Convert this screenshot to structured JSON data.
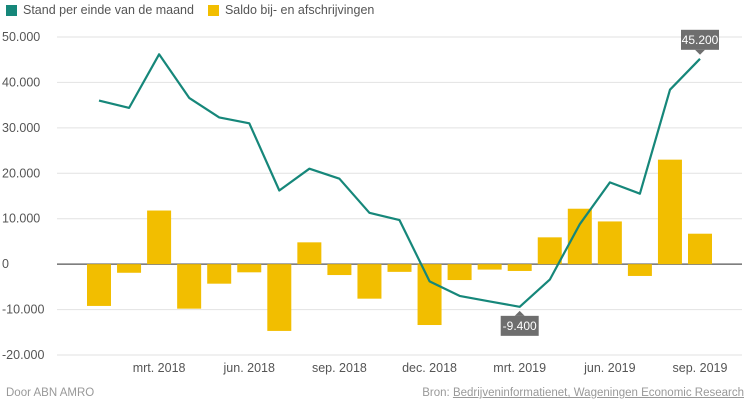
{
  "legend": {
    "line_label": "Stand per einde van de maand",
    "bar_label": "Saldo bij- en afschrijvingen"
  },
  "colors": {
    "line": "#16877a",
    "bar": "#f2be00",
    "callout": "#6e6e6e"
  },
  "footer": {
    "credit": "Door ABN AMRO",
    "source_prefix": "Bron:",
    "source_link": "Bedrijveninformatienet, Wageningen Economic Research"
  },
  "chart_data": {
    "type": "bar+line",
    "categories": [
      "2018-01",
      "2018-02",
      "2018-03",
      "2018-04",
      "2018-05",
      "2018-06",
      "2018-07",
      "2018-08",
      "2018-09",
      "2018-10",
      "2018-11",
      "2018-12",
      "2019-01",
      "2019-02",
      "2019-03",
      "2019-04",
      "2019-05",
      "2019-06",
      "2019-07",
      "2019-08",
      "2019-09"
    ],
    "x_tick_labels": [
      {
        "index": 2,
        "label": "mrt. 2018"
      },
      {
        "index": 5,
        "label": "jun. 2018"
      },
      {
        "index": 8,
        "label": "sep. 2018"
      },
      {
        "index": 11,
        "label": "dec. 2018"
      },
      {
        "index": 14,
        "label": "mrt. 2019"
      },
      {
        "index": 17,
        "label": "jun. 2019"
      },
      {
        "index": 20,
        "label": "sep. 2019"
      }
    ],
    "y_ticks": [
      -20000,
      -10000,
      0,
      10000,
      20000,
      30000,
      40000,
      50000
    ],
    "y_tick_labels": [
      "-20.000",
      "-10.000",
      "0",
      "10.000",
      "20.000",
      "30.000",
      "40.000",
      "50.000"
    ],
    "ylim": [
      -20000,
      50000
    ],
    "series": [
      {
        "name": "Saldo bij- en afschrijvingen",
        "kind": "bar",
        "values": [
          -9200,
          -1900,
          11800,
          -9800,
          -4300,
          -1800,
          -14700,
          4800,
          -2400,
          -7600,
          -1700,
          -13400,
          -3500,
          -1200,
          -1500,
          5900,
          12200,
          9400,
          -2600,
          23000,
          6700
        ]
      },
      {
        "name": "Stand per einde van de maand",
        "kind": "line",
        "values": [
          36000,
          34400,
          46200,
          36600,
          32300,
          31000,
          16200,
          21000,
          18800,
          11300,
          9700,
          -3800,
          -7000,
          -8200,
          -9400,
          -3400,
          8800,
          18000,
          15500,
          38400,
          45200
        ]
      }
    ],
    "annotations": [
      {
        "series": "Stand per einde van de maand",
        "index": 14,
        "label": "-9.400",
        "position": "below"
      },
      {
        "series": "Stand per einde van de maand",
        "index": 20,
        "label": "45.200",
        "position": "above"
      }
    ],
    "grid": true,
    "legend_position": "top-left"
  }
}
